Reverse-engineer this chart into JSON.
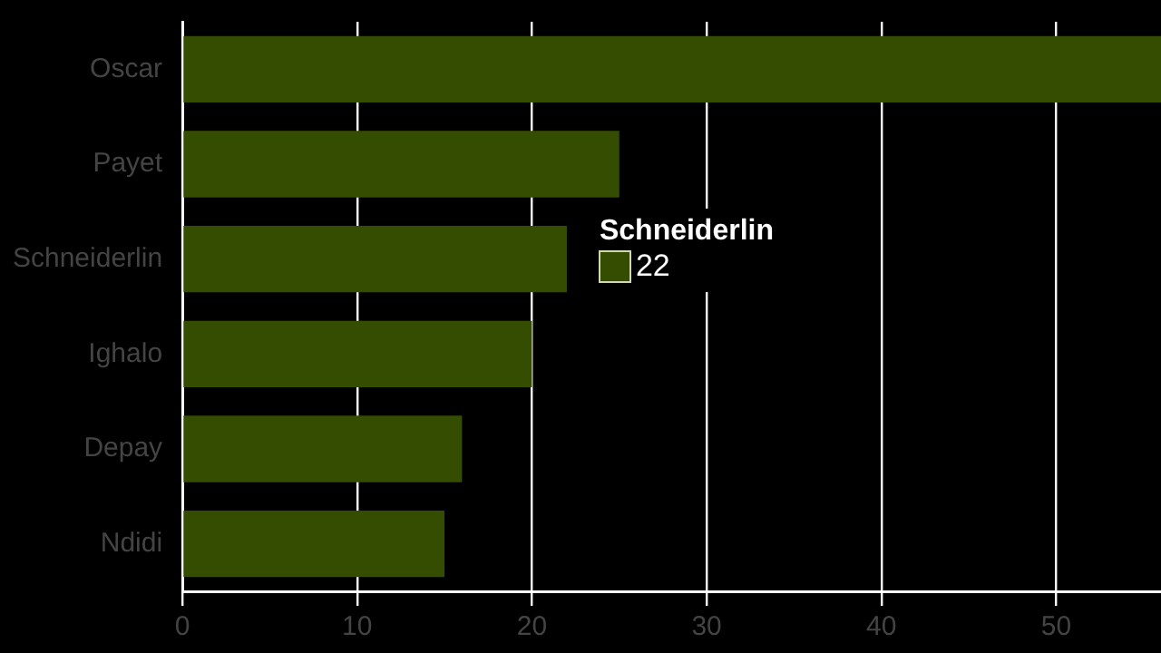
{
  "chart_data": {
    "type": "bar",
    "orientation": "horizontal",
    "categories": [
      "Oscar",
      "Payet",
      "Schneiderlin",
      "Ighalo",
      "Depay",
      "Ndidi"
    ],
    "values": [
      56,
      25,
      22,
      20,
      16,
      15
    ],
    "color": "#344d00",
    "xlim": [
      0,
      56
    ],
    "xticks": [
      0,
      10,
      20,
      30,
      40,
      50
    ],
    "grid": "x",
    "annotations": [
      {
        "text": "Schneiderlin",
        "x": 22,
        "y": "Schneiderlin"
      },
      "22"
    ]
  }
}
